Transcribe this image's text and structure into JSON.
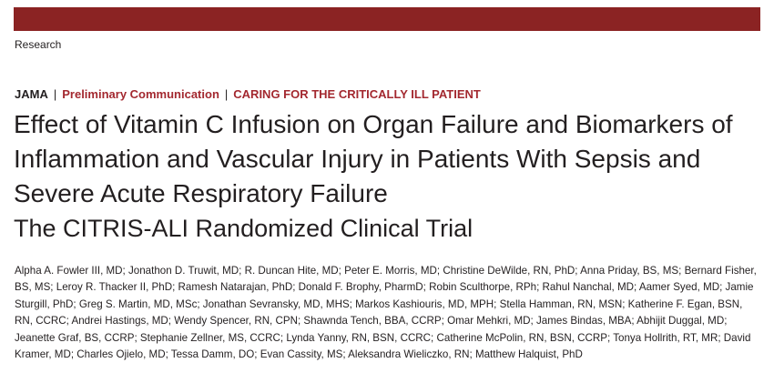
{
  "colors": {
    "banner": "#8b2323",
    "accent_red": "#a3282f",
    "text": "#231f20"
  },
  "section_label": "Research",
  "header": {
    "journal": "JAMA",
    "separator": "|",
    "article_type": "Preliminary Communication",
    "series": "CARING FOR THE CRITICALLY ILL PATIENT"
  },
  "title": "Effect of Vitamin C Infusion on Organ Failure and Biomarkers of Inflammation and Vascular Injury in Patients With Sepsis and Severe Acute Respiratory Failure",
  "subtitle": "The CITRIS-ALI Randomized Clinical Trial",
  "authors": "Alpha A. Fowler III, MD; Jonathon D. Truwit, MD; R. Duncan Hite, MD; Peter E. Morris, MD; Christine DeWilde, RN, PhD; Anna Priday, BS, MS; Bernard Fisher, BS, MS; Leroy R. Thacker II, PhD; Ramesh Natarajan, PhD; Donald F. Brophy, PharmD; Robin Sculthorpe, RPh; Rahul Nanchal, MD; Aamer Syed, MD; Jamie Sturgill, PhD; Greg S. Martin, MD, MSc; Jonathan Sevransky, MD, MHS; Markos Kashiouris, MD, MPH; Stella Hamman, RN, MSN; Katherine F. Egan, BSN, RN, CCRC; Andrei Hastings, MD; Wendy Spencer, RN, CPN; Shawnda Tench, BBA, CCRP; Omar Mehkri, MD; James Bindas, MBA; Abhijit Duggal, MD; Jeanette Graf, BS, CCRP; Stephanie Zellner, MS, CCRC; Lynda Yanny, RN, BSN, CCRC; Catherine McPolin, RN, BSN, CCRP; Tonya Hollrith, RT, MR; David Kramer, MD; Charles Ojielo, MD; Tessa Damm, DO; Evan Cassity, MS; Aleksandra Wieliczko, RN; Matthew Halquist, PhD"
}
